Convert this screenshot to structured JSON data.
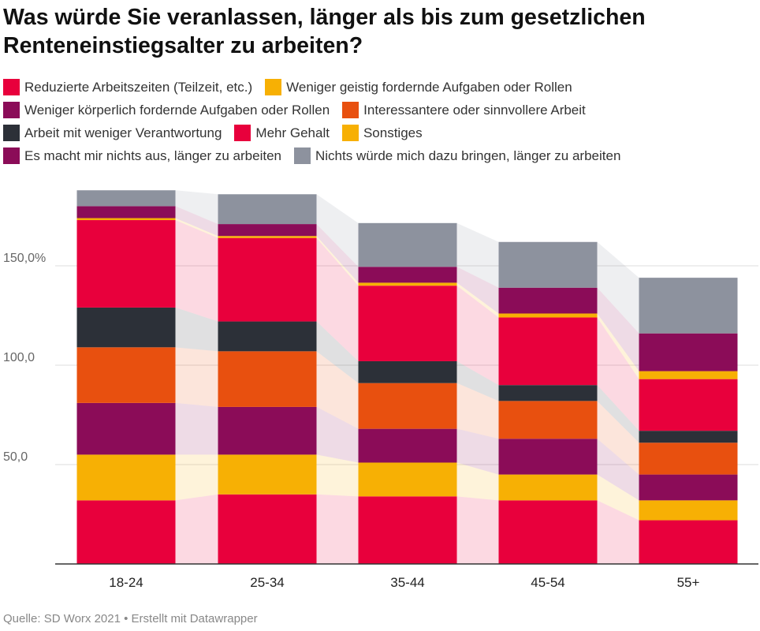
{
  "chart_data": {
    "type": "bar",
    "stacked": true,
    "title": "Was würde Sie veranlassen, länger als bis zum gesetzlichen Renteneinstiegsalter zu arbeiten?",
    "categories": [
      "18-24",
      "25-34",
      "35-44",
      "45-54",
      "55+"
    ],
    "ylim": [
      0,
      190
    ],
    "yticks": [
      {
        "value": 50,
        "label": "50,0"
      },
      {
        "value": 100,
        "label": "100,0"
      },
      {
        "value": 150,
        "label": "150,0%"
      }
    ],
    "grid": true,
    "legend_position": "top",
    "series": [
      {
        "name": "Reduzierte Arbeitszeiten (Teilzeit, etc.)",
        "color": "#e8003c",
        "values": [
          32,
          35,
          34,
          32,
          22
        ]
      },
      {
        "name": "Weniger geistig fordernde Aufgaben oder Rollen",
        "color": "#f7b004",
        "values": [
          23,
          20,
          17,
          13,
          10
        ]
      },
      {
        "name": "Weniger körperlich fordernde Aufgaben oder Rollen",
        "color": "#8b0c58",
        "values": [
          26,
          24,
          17,
          18,
          13
        ]
      },
      {
        "name": "Interessantere oder sinnvollere Arbeit",
        "color": "#e8500f",
        "values": [
          28,
          28,
          23,
          19,
          16
        ]
      },
      {
        "name": "Arbeit mit weniger Verantwortung",
        "color": "#2c3038",
        "values": [
          20,
          15,
          11,
          8,
          6
        ]
      },
      {
        "name": "Mehr Gehalt",
        "color": "#e8003c",
        "values": [
          44,
          42,
          38,
          34,
          26
        ]
      },
      {
        "name": "Sonstiges",
        "color": "#f7b004",
        "values": [
          1,
          1,
          1.5,
          2,
          4
        ]
      },
      {
        "name": "Es macht mir nichts aus, länger zu arbeiten",
        "color": "#8b0c58",
        "values": [
          6,
          6,
          8,
          13,
          19
        ]
      },
      {
        "name": "Nichts würde mich dazu bringen, länger zu arbeiten",
        "color": "#8d929e",
        "values": [
          8,
          15,
          22,
          23,
          28
        ]
      }
    ]
  },
  "legend": {
    "rows": [
      [
        {
          "label": "Reduzierte Arbeitszeiten (Teilzeit, etc.)",
          "color": "#e8003c"
        },
        {
          "label": "Weniger geistig fordernde Aufgaben oder Rollen",
          "color": "#f7b004"
        }
      ],
      [
        {
          "label": "Weniger körperlich fordernde Aufgaben oder Rollen",
          "color": "#8b0c58"
        },
        {
          "label": "Interessantere oder sinnvollere Arbeit",
          "color": "#e8500f"
        }
      ],
      [
        {
          "label": "Arbeit mit weniger Verantwortung",
          "color": "#2c3038"
        },
        {
          "label": "Mehr Gehalt",
          "color": "#e8003c"
        },
        {
          "label": "Sonstiges",
          "color": "#f7b004"
        }
      ],
      [
        {
          "label": "Es macht mir nichts aus, länger zu arbeiten",
          "color": "#8b0c58"
        },
        {
          "label": "Nichts würde mich dazu bringen, länger zu arbeiten",
          "color": "#8d929e"
        }
      ]
    ]
  },
  "footer": {
    "text": "Quelle: SD Worx 2021 • Erstellt mit Datawrapper"
  }
}
